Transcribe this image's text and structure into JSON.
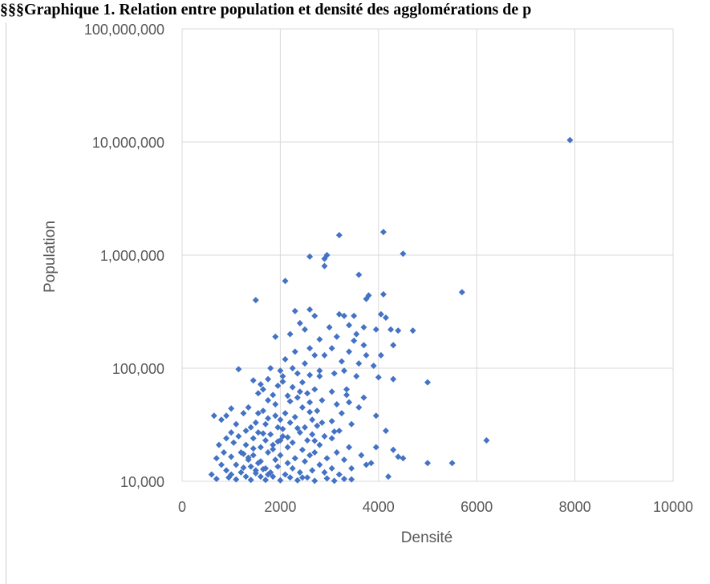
{
  "title": "§§§Graphique 1. Relation entre population et densité des agglomérations de p",
  "chart_data": {
    "type": "scatter",
    "xlabel": "Densité",
    "ylabel": "Population",
    "xlim": [
      0,
      10000
    ],
    "ylim": [
      10000,
      100000000
    ],
    "y_scale": "log",
    "grid": true,
    "marker": "diamond",
    "color": "#4472C4",
    "x_ticks": [
      "0",
      "2000",
      "4000",
      "6000",
      "8000",
      "10000"
    ],
    "y_ticks": [
      "10,000",
      "100,000",
      "1,000,000",
      "10,000,000",
      "100,000,000"
    ],
    "points": [
      [
        7900,
        10400000
      ],
      [
        4100,
        1600000
      ],
      [
        3200,
        1500000
      ],
      [
        4500,
        1030000
      ],
      [
        2600,
        970000
      ],
      [
        2950,
        1000000
      ],
      [
        2900,
        930000
      ],
      [
        2900,
        800000
      ],
      [
        3600,
        670000
      ],
      [
        5700,
        470000
      ],
      [
        2100,
        590000
      ],
      [
        4100,
        450000
      ],
      [
        1500,
        400000
      ],
      [
        3750,
        410000
      ],
      [
        3800,
        440000
      ],
      [
        2300,
        320000
      ],
      [
        2600,
        330000
      ],
      [
        2700,
        290000
      ],
      [
        3300,
        290000
      ],
      [
        3500,
        290000
      ],
      [
        3200,
        300000
      ],
      [
        4050,
        300000
      ],
      [
        4150,
        280000
      ],
      [
        2500,
        220000
      ],
      [
        3000,
        230000
      ],
      [
        3400,
        240000
      ],
      [
        3950,
        220000
      ],
      [
        4250,
        220000
      ],
      [
        4400,
        215000
      ],
      [
        4700,
        215000
      ],
      [
        1900,
        190000
      ],
      [
        2200,
        200000
      ],
      [
        2800,
        180000
      ],
      [
        3150,
        190000
      ],
      [
        3550,
        200000
      ],
      [
        3700,
        230000
      ],
      [
        3050,
        150000
      ],
      [
        3700,
        160000
      ],
      [
        4300,
        160000
      ],
      [
        2300,
        140000
      ],
      [
        2900,
        130000
      ],
      [
        3400,
        140000
      ],
      [
        3750,
        130000
      ],
      [
        2100,
        120000
      ],
      [
        2700,
        130000
      ],
      [
        3250,
        115000
      ],
      [
        3600,
        110000
      ],
      [
        1800,
        100000
      ],
      [
        2250,
        100000
      ],
      [
        2500,
        110000
      ],
      [
        2000,
        95000
      ],
      [
        2350,
        90000
      ],
      [
        3100,
        90000
      ],
      [
        3300,
        95000
      ],
      [
        1150,
        98000
      ],
      [
        1750,
        80000
      ],
      [
        2050,
        85000
      ],
      [
        2450,
        75000
      ],
      [
        2800,
        85000
      ],
      [
        3550,
        85000
      ],
      [
        4000,
        83000
      ],
      [
        4300,
        80000
      ],
      [
        5000,
        75000
      ],
      [
        1450,
        78000
      ],
      [
        1600,
        72000
      ],
      [
        2700,
        65000
      ],
      [
        3050,
        62000
      ],
      [
        1950,
        70000
      ],
      [
        2250,
        68000
      ],
      [
        2550,
        60000
      ],
      [
        3350,
        58000
      ],
      [
        3700,
        55000
      ],
      [
        1850,
        58000
      ],
      [
        2150,
        57000
      ],
      [
        2350,
        55000
      ],
      [
        2600,
        50000
      ],
      [
        2850,
        52000
      ],
      [
        3400,
        50000
      ],
      [
        3150,
        48000
      ],
      [
        3600,
        45000
      ],
      [
        1350,
        45000
      ],
      [
        1650,
        42000
      ],
      [
        1900,
        48000
      ],
      [
        2450,
        45000
      ],
      [
        2750,
        42000
      ],
      [
        3950,
        38000
      ],
      [
        1000,
        44000
      ],
      [
        1250,
        40000
      ],
      [
        1550,
        40000
      ],
      [
        2100,
        40000
      ],
      [
        3250,
        40000
      ],
      [
        650,
        38000
      ],
      [
        900,
        38000
      ],
      [
        1750,
        36000
      ],
      [
        2000,
        35000
      ],
      [
        2300,
        37000
      ],
      [
        2650,
        35000
      ],
      [
        2850,
        33000
      ],
      [
        3050,
        34000
      ],
      [
        3450,
        32000
      ],
      [
        800,
        35000
      ],
      [
        1100,
        32000
      ],
      [
        1400,
        30000
      ],
      [
        1700,
        32000
      ],
      [
        1950,
        30000
      ],
      [
        2200,
        33000
      ],
      [
        2500,
        30000
      ],
      [
        2750,
        31000
      ],
      [
        3200,
        28000
      ],
      [
        4150,
        28000
      ],
      [
        1000,
        27000
      ],
      [
        1300,
        28000
      ],
      [
        1550,
        27000
      ],
      [
        1800,
        26000
      ],
      [
        2050,
        25000
      ],
      [
        2400,
        27000
      ],
      [
        2650,
        26000
      ],
      [
        2900,
        25000
      ],
      [
        3050,
        24000
      ],
      [
        6200,
        23000
      ],
      [
        900,
        24000
      ],
      [
        1150,
        25000
      ],
      [
        1450,
        24000
      ],
      [
        1700,
        23000
      ],
      [
        2000,
        23000
      ],
      [
        2250,
        22000
      ],
      [
        2550,
        23000
      ],
      [
        2800,
        21000
      ],
      [
        3400,
        20000
      ],
      [
        3950,
        20000
      ],
      [
        4300,
        19000
      ],
      [
        750,
        21000
      ],
      [
        1050,
        22000
      ],
      [
        1300,
        21000
      ],
      [
        1600,
        20000
      ],
      [
        1850,
        21000
      ],
      [
        2150,
        20000
      ],
      [
        2450,
        19000
      ],
      [
        2700,
        18000
      ],
      [
        3150,
        18000
      ],
      [
        3650,
        17000
      ],
      [
        4400,
        16500
      ],
      [
        850,
        18000
      ],
      [
        1200,
        18000
      ],
      [
        1450,
        17000
      ],
      [
        1750,
        18000
      ],
      [
        2000,
        17000
      ],
      [
        2300,
        16000
      ],
      [
        2600,
        17000
      ],
      [
        2950,
        16000
      ],
      [
        3300,
        15500
      ],
      [
        4500,
        16000
      ],
      [
        700,
        16000
      ],
      [
        1000,
        16500
      ],
      [
        1350,
        15500
      ],
      [
        1600,
        15000
      ],
      [
        1900,
        15500
      ],
      [
        2150,
        14500
      ],
      [
        2500,
        15000
      ],
      [
        2800,
        14000
      ],
      [
        3750,
        14000
      ],
      [
        3850,
        14500
      ],
      [
        5000,
        14500
      ],
      [
        5500,
        14500
      ],
      [
        800,
        14000
      ],
      [
        1100,
        14000
      ],
      [
        1400,
        13500
      ],
      [
        1700,
        13000
      ],
      [
        1950,
        13500
      ],
      [
        2250,
        13000
      ],
      [
        2650,
        12500
      ],
      [
        3050,
        13000
      ],
      [
        3450,
        13000
      ],
      [
        900,
        12500
      ],
      [
        1200,
        12000
      ],
      [
        1500,
        12500
      ],
      [
        1800,
        12000
      ],
      [
        2100,
        11500
      ],
      [
        2400,
        12000
      ],
      [
        2900,
        12000
      ],
      [
        3200,
        11500
      ],
      [
        4200,
        11000
      ],
      [
        600,
        11500
      ],
      [
        1000,
        11500
      ],
      [
        1300,
        11000
      ],
      [
        1600,
        11000
      ],
      [
        1850,
        11000
      ],
      [
        2200,
        10800
      ],
      [
        2550,
        10800
      ],
      [
        2950,
        10600
      ],
      [
        3300,
        10500
      ],
      [
        3450,
        10400
      ],
      [
        700,
        10500
      ],
      [
        1100,
        10400
      ],
      [
        1400,
        10300
      ],
      [
        1700,
        10300
      ],
      [
        2000,
        10200
      ],
      [
        2350,
        10200
      ],
      [
        2700,
        10100
      ],
      [
        3100,
        10100
      ],
      [
        1550,
        14500
      ],
      [
        1450,
        19500
      ],
      [
        1250,
        17500
      ],
      [
        1650,
        26500
      ],
      [
        1500,
        33000
      ],
      [
        1900,
        38000
      ],
      [
        2200,
        51000
      ],
      [
        2400,
        62000
      ],
      [
        2050,
        76000
      ],
      [
        2600,
        87000
      ],
      [
        1500,
        11800
      ],
      [
        1650,
        12800
      ],
      [
        1350,
        16200
      ],
      [
        1850,
        19200
      ],
      [
        2150,
        24500
      ],
      [
        2350,
        29500
      ],
      [
        1750,
        52000
      ],
      [
        1650,
        65000
      ],
      [
        2800,
        95000
      ],
      [
        3500,
        175000
      ],
      [
        2400,
        250000
      ],
      [
        2600,
        150000
      ],
      [
        3900,
        105000
      ],
      [
        4050,
        130000
      ],
      [
        1550,
        60000
      ],
      [
        1750,
        11500
      ],
      [
        2450,
        10800
      ],
      [
        1950,
        22500
      ],
      [
        1250,
        13200
      ],
      [
        950,
        10800
      ],
      [
        2700,
        22800
      ],
      [
        3100,
        27500
      ],
      [
        2050,
        29000
      ],
      [
        2600,
        41000
      ],
      [
        3350,
        65000
      ]
    ]
  }
}
